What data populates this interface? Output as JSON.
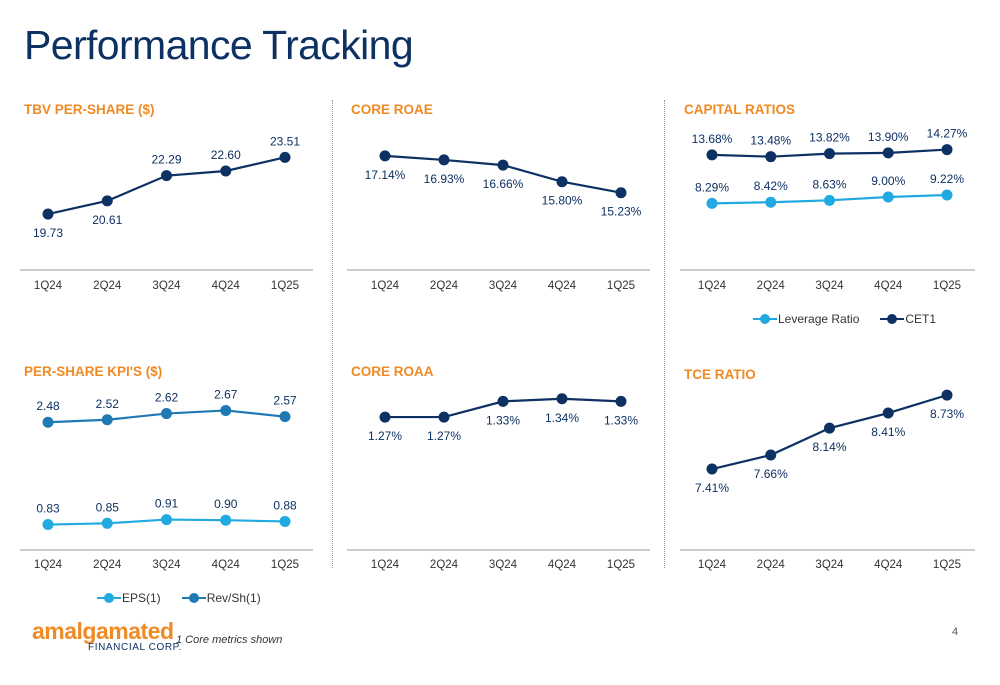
{
  "page": {
    "title": "Performance Tracking",
    "footnote": "1 Core metrics shown",
    "page_number": "4",
    "logo_main": "amalgamated",
    "logo_sub": "FINANCIAL CORP.",
    "colors": {
      "navy": "#0d3163",
      "orange": "#f08a24",
      "light_blue": "#21a9e1",
      "mid_blue": "#1f7ab3"
    }
  },
  "panels": {
    "tbv": {
      "title": "TBV PER-SHARE ($)"
    },
    "roae": {
      "title": "CORE ROAE"
    },
    "capital": {
      "title": "CAPITAL RATIOS",
      "legend": [
        "Leverage Ratio",
        "CET1"
      ]
    },
    "kpi": {
      "title": "PER-SHARE KPI'S ($)",
      "legend": [
        "EPS(1)",
        "Rev/Sh(1)"
      ]
    },
    "roaa": {
      "title": "CORE ROAA"
    },
    "tce": {
      "title": "TCE RATIO"
    }
  },
  "chart_data": [
    {
      "id": "tbv",
      "type": "line",
      "title": "TBV PER-SHARE ($)",
      "categories": [
        "1Q24",
        "2Q24",
        "3Q24",
        "4Q24",
        "1Q25"
      ],
      "ylim": [
        17,
        26
      ],
      "series": [
        {
          "color": "#0d3163",
          "values": [
            19.73,
            20.61,
            22.29,
            22.6,
            23.51
          ],
          "labels": [
            "19.73",
            "20.61",
            "22.29",
            "22.60",
            "23.51"
          ],
          "label_pos": [
            "below",
            "below",
            "above",
            "above",
            "above"
          ]
        }
      ]
    },
    {
      "id": "roae",
      "type": "line",
      "title": "CORE ROAE",
      "categories": [
        "1Q24",
        "2Q24",
        "3Q24",
        "4Q24",
        "1Q25"
      ],
      "ylim": [
        12,
        19
      ],
      "series": [
        {
          "color": "#0d3163",
          "values": [
            17.14,
            16.93,
            16.66,
            15.8,
            15.23
          ],
          "labels": [
            "17.14%",
            "16.93%",
            "16.66%",
            "15.80%",
            "15.23%"
          ],
          "label_pos": [
            "below",
            "below",
            "below",
            "below",
            "below"
          ]
        }
      ]
    },
    {
      "id": "capital",
      "type": "line",
      "title": "CAPITAL RATIOS",
      "categories": [
        "1Q24",
        "2Q24",
        "3Q24",
        "4Q24",
        "1Q25"
      ],
      "ylim": [
        2,
        17
      ],
      "series": [
        {
          "name": "Leverage Ratio",
          "color": "#21a9e1",
          "values": [
            8.29,
            8.42,
            8.63,
            9.0,
            9.22
          ],
          "labels": [
            "8.29%",
            "8.42%",
            "8.63%",
            "9.00%",
            "9.22%"
          ],
          "label_pos": [
            "above",
            "above",
            "above",
            "above",
            "above"
          ]
        },
        {
          "name": "CET1",
          "color": "#0d3163",
          "values": [
            13.68,
            13.48,
            13.82,
            13.9,
            14.27
          ],
          "labels": [
            "13.68%",
            "13.48%",
            "13.82%",
            "13.90%",
            "14.27%"
          ],
          "label_pos": [
            "above",
            "above",
            "above",
            "above",
            "above"
          ]
        }
      ]
    },
    {
      "id": "kpi",
      "type": "line",
      "title": "PER-SHARE KPI'S ($)",
      "categories": [
        "1Q24",
        "2Q24",
        "3Q24",
        "4Q24",
        "1Q25"
      ],
      "ylim": [
        0.5,
        3.0
      ],
      "series": [
        {
          "name": "EPS(1)",
          "color": "#21a9e1",
          "values": [
            0.83,
            0.85,
            0.91,
            0.9,
            0.88
          ],
          "labels": [
            "0.83",
            "0.85",
            "0.91",
            "0.90",
            "0.88"
          ],
          "label_pos": [
            "above",
            "above",
            "above",
            "above",
            "above"
          ]
        },
        {
          "name": "Rev/Sh(1)",
          "color": "#1f7ab3",
          "values": [
            2.48,
            2.52,
            2.62,
            2.67,
            2.57
          ],
          "labels": [
            "2.48",
            "2.52",
            "2.62",
            "2.67",
            "2.57"
          ],
          "label_pos": [
            "above",
            "above",
            "above",
            "above",
            "above"
          ]
        }
      ]
    },
    {
      "id": "roaa",
      "type": "line",
      "title": "CORE ROAA",
      "categories": [
        "1Q24",
        "2Q24",
        "3Q24",
        "4Q24",
        "1Q25"
      ],
      "ylim": [
        0.8,
        1.45
      ],
      "series": [
        {
          "color": "#0d3163",
          "values": [
            1.27,
            1.27,
            1.33,
            1.34,
            1.33
          ],
          "labels": [
            "1.27%",
            "1.27%",
            "1.33%",
            "1.34%",
            "1.33%"
          ],
          "label_pos": [
            "below",
            "below",
            "below",
            "below",
            "below"
          ]
        }
      ]
    },
    {
      "id": "tce",
      "type": "line",
      "title": "TCE RATIO",
      "categories": [
        "1Q24",
        "2Q24",
        "3Q24",
        "4Q24",
        "1Q25"
      ],
      "ylim": [
        6.5,
        9.0
      ],
      "series": [
        {
          "color": "#0d3163",
          "values": [
            7.41,
            7.66,
            8.14,
            8.41,
            8.73
          ],
          "labels": [
            "7.41%",
            "7.66%",
            "8.14%",
            "8.41%",
            "8.73%"
          ],
          "label_pos": [
            "below",
            "below",
            "below",
            "below",
            "below"
          ]
        }
      ]
    }
  ]
}
